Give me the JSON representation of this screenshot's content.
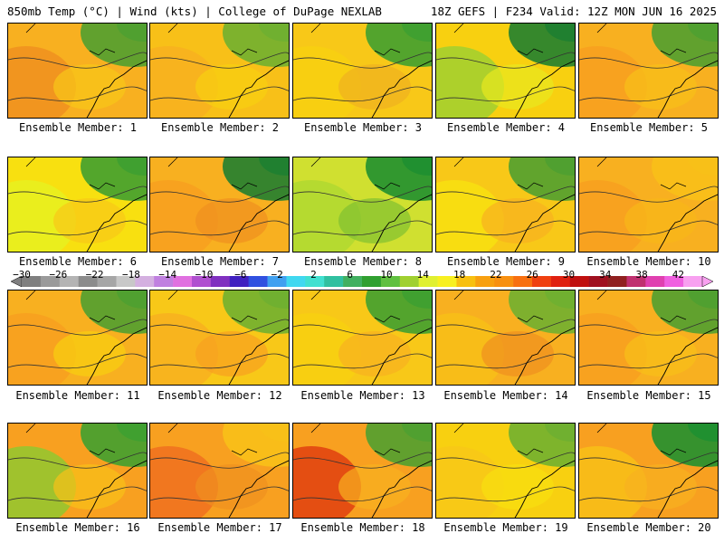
{
  "header": {
    "left": "850mb Temp (°C) | Wind (kts) | College of DuPage NEXLAB",
    "right": "18Z GEFS | F234 Valid: 12Z MON JUN 16 2025"
  },
  "panels": [
    {
      "label": "Ensemble Member: 1"
    },
    {
      "label": "Ensemble Member: 2"
    },
    {
      "label": "Ensemble Member: 3"
    },
    {
      "label": "Ensemble Member: 4"
    },
    {
      "label": "Ensemble Member: 5"
    },
    {
      "label": "Ensemble Member: 6"
    },
    {
      "label": "Ensemble Member: 7"
    },
    {
      "label": "Ensemble Member: 8"
    },
    {
      "label": "Ensemble Member: 9"
    },
    {
      "label": "Ensemble Member: 10"
    },
    {
      "label": "Ensemble Member: 11"
    },
    {
      "label": "Ensemble Member: 12"
    },
    {
      "label": "Ensemble Member: 13"
    },
    {
      "label": "Ensemble Member: 14"
    },
    {
      "label": "Ensemble Member: 15"
    },
    {
      "label": "Ensemble Member: 16"
    },
    {
      "label": "Ensemble Member: 17"
    },
    {
      "label": "Ensemble Member: 18"
    },
    {
      "label": "Ensemble Member: 19"
    },
    {
      "label": "Ensemble Member: 20"
    }
  ],
  "colorbar": {
    "ticks": [
      "−30",
      "−26",
      "−22",
      "−18",
      "−14",
      "−10",
      "−6",
      "−2",
      "2",
      "6",
      "10",
      "14",
      "18",
      "22",
      "26",
      "30",
      "34",
      "38",
      "42"
    ],
    "colors": [
      "#7f7f7f",
      "#9a9a9a",
      "#b4b4b4",
      "#8c8c8c",
      "#a6a6a6",
      "#c8c8c8",
      "#d4b0e0",
      "#c080e0",
      "#e070e0",
      "#b050d0",
      "#8030c0",
      "#4020c0",
      "#3050e0",
      "#40a0f0",
      "#40d8f0",
      "#40e0d0",
      "#30c0a0",
      "#40b060",
      "#30a030",
      "#60c040",
      "#a0d030",
      "#e0f030",
      "#f8f020",
      "#f8c010",
      "#f8a010",
      "#f89010",
      "#f87010",
      "#f04010",
      "#e02010",
      "#c01010",
      "#a01020",
      "#902020",
      "#c03070",
      "#e040b0",
      "#f060e0",
      "#f8a0f0"
    ]
  }
}
